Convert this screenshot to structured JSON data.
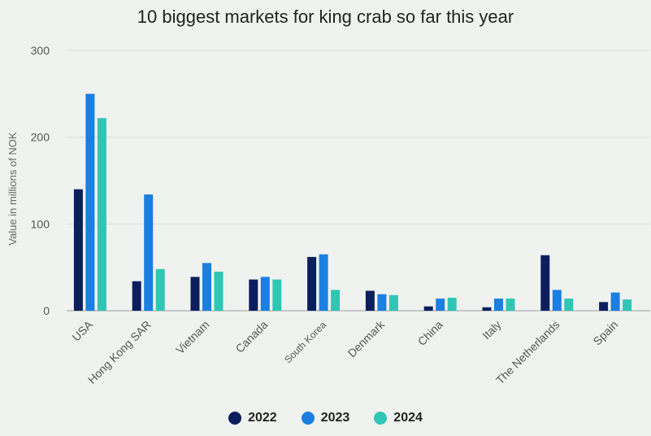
{
  "chart_data": {
    "type": "bar",
    "title": "10 biggest markets for king crab so far this year",
    "ylabel": "Value in millions of NOK",
    "xlabel": "",
    "ylim": [
      0,
      300
    ],
    "yticks": [
      0,
      100,
      200,
      300
    ],
    "grid": true,
    "legend_position": "bottom",
    "categories": [
      "USA",
      "Hong Kong SAR",
      "Vietnam",
      "Canada",
      "South Korea",
      "Denmark",
      "China",
      "Italy",
      "The Netherlands",
      "Spain"
    ],
    "series": [
      {
        "name": "2022",
        "color": "#0b1f5e",
        "values": [
          140,
          34,
          39,
          36,
          62,
          23,
          5,
          4,
          64,
          10
        ]
      },
      {
        "name": "2023",
        "color": "#1a7fe0",
        "values": [
          250,
          134,
          55,
          39,
          65,
          19,
          14,
          14,
          24,
          21
        ]
      },
      {
        "name": "2024",
        "color": "#2fc6b5",
        "values": [
          222,
          48,
          45,
          36,
          24,
          18,
          15,
          14,
          14,
          13
        ]
      }
    ]
  }
}
